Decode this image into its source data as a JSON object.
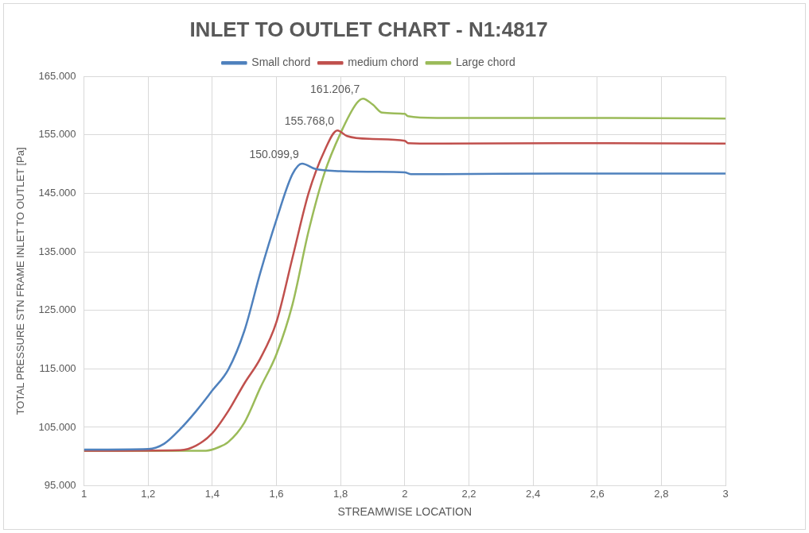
{
  "chart_data": {
    "type": "line",
    "title": "INLET TO OUTLET CHART - N1:4817",
    "xlabel": "STREAMWISE LOCATION",
    "ylabel": "TOTAL PRESSURE STN FRAME INLET TO OUTLET [Pa]",
    "xlim": [
      1,
      3
    ],
    "xticks": [
      1,
      {
        "value": 1.2,
        "label": "1,2"
      },
      {
        "value": 1.4,
        "label": "1,4"
      },
      {
        "value": 1.6,
        "label": "1,6"
      },
      {
        "value": 1.8,
        "label": "1,8"
      },
      2,
      {
        "value": 2.2,
        "label": "2,2"
      },
      {
        "value": 2.4,
        "label": "2,4"
      },
      {
        "value": 2.6,
        "label": "2,6"
      },
      {
        "value": 2.8,
        "label": "2,8"
      },
      3
    ],
    "ylim": [
      95000,
      165000
    ],
    "yticks": [
      {
        "value": 95000,
        "label": "95.000"
      },
      {
        "value": 105000,
        "label": "105.000"
      },
      {
        "value": 115000,
        "label": "115.000"
      },
      {
        "value": 125000,
        "label": "125.000"
      },
      {
        "value": 135000,
        "label": "135.000"
      },
      {
        "value": 145000,
        "label": "145.000"
      },
      {
        "value": 155000,
        "label": "155.000"
      },
      {
        "value": 165000,
        "label": "165.000"
      }
    ],
    "grid": true,
    "legend": "top",
    "marker": "none",
    "line_style": "solid",
    "series": [
      {
        "name": "Small chord",
        "color": "#4f81bd",
        "x": [
          1,
          1.2,
          1.25,
          1.3,
          1.35,
          1.4,
          1.45,
          1.5,
          1.55,
          1.6,
          1.65,
          1.68,
          1.72,
          1.8,
          1.9,
          2,
          2.02,
          2.1,
          2.5,
          3
        ],
        "values": [
          101200,
          101300,
          102200,
          104700,
          107800,
          111300,
          114900,
          121500,
          131500,
          140500,
          148300,
          150099.9,
          149200,
          148800,
          148700,
          148600,
          148300,
          148300,
          148400,
          148400
        ]
      },
      {
        "name": "medium chord",
        "color": "#c0504d",
        "x": [
          1,
          1.3,
          1.35,
          1.4,
          1.45,
          1.5,
          1.55,
          1.6,
          1.65,
          1.7,
          1.75,
          1.79,
          1.82,
          1.9,
          2,
          2.01,
          2.1,
          2.5,
          3
        ],
        "values": [
          101000,
          101100,
          101900,
          104000,
          107800,
          112500,
          116800,
          123000,
          134000,
          145000,
          152300,
          155768,
          154800,
          154300,
          154000,
          153600,
          153500,
          153600,
          153500
        ]
      },
      {
        "name": "Large chord",
        "color": "#9bbb59",
        "x": [
          1,
          1.38,
          1.42,
          1.45,
          1.5,
          1.55,
          1.6,
          1.65,
          1.7,
          1.75,
          1.8,
          1.85,
          1.87,
          1.9,
          1.93,
          2,
          2.01,
          2.1,
          2.6,
          3
        ],
        "values": [
          101000,
          101000,
          101600,
          102500,
          105800,
          111800,
          117500,
          126000,
          138500,
          148500,
          155300,
          160400,
          161206.7,
          160200,
          158800,
          158600,
          158200,
          157900,
          157900,
          157800
        ]
      }
    ],
    "annotations": [
      {
        "text": "150.099,9",
        "x": 1.68,
        "y": 150099.9
      },
      {
        "text": "155.768,0",
        "x": 1.79,
        "y": 155768
      },
      {
        "text": "161.206,7",
        "x": 1.87,
        "y": 161206.7
      }
    ]
  }
}
